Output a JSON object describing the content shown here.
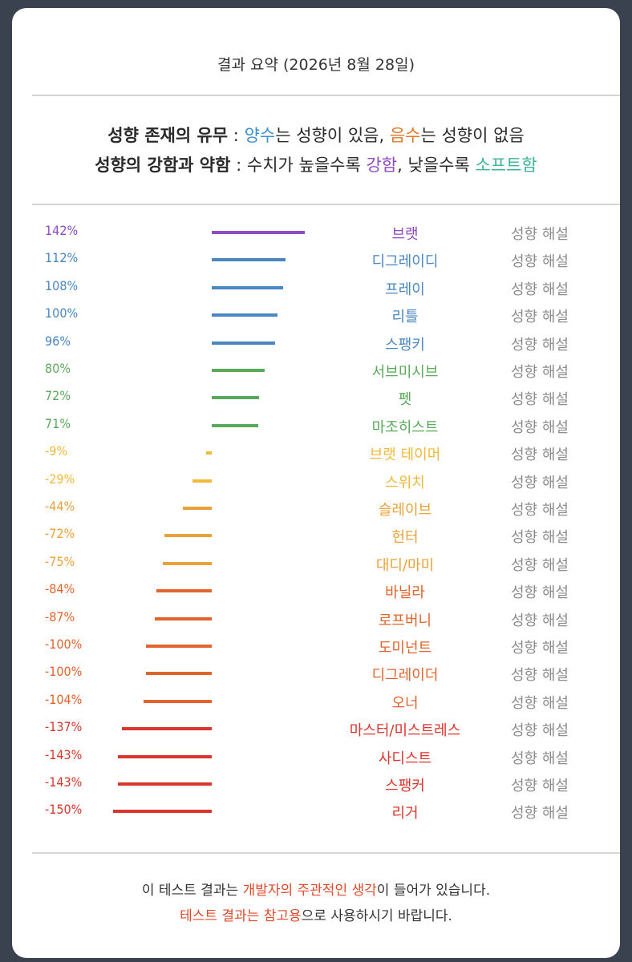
{
  "title": "결과 요약 (2026년 8월 28일)",
  "legend": {
    "line1": {
      "label": "성향 존재의 유무",
      "sep": " : ",
      "positive": "양수",
      "positive_text": "는 성향이 있음, ",
      "negative": "음수",
      "negative_text": "는 성향이 없음"
    },
    "line2": {
      "label": "성향의 강함과 약함",
      "sep": " : 수치가 높을수록 ",
      "strong": "강함",
      "mid": ", 낮을수록 ",
      "soft": "소프트함"
    }
  },
  "help_label": "성향 해설",
  "colors": {
    "purple": "#8e4bc4",
    "blue": "#4a86c0",
    "green": "#5aa85a",
    "yellow": "#f0b93a",
    "amber": "#e8a23a",
    "orange": "#e0642c",
    "red": "#d9362e"
  },
  "chart_data": {
    "type": "bar",
    "orientation": "horizontal-diverging",
    "unit": "%",
    "rows": [
      {
        "label": "브랫",
        "value": 142,
        "display": "142%",
        "color": "purple"
      },
      {
        "label": "디그레이디",
        "value": 112,
        "display": "112%",
        "color": "blue"
      },
      {
        "label": "프레이",
        "value": 108,
        "display": "108%",
        "color": "blue"
      },
      {
        "label": "리틀",
        "value": 100,
        "display": "100%",
        "color": "blue"
      },
      {
        "label": "스팽키",
        "value": 96,
        "display": "96%",
        "color": "blue"
      },
      {
        "label": "서브미시브",
        "value": 80,
        "display": "80%",
        "color": "green"
      },
      {
        "label": "펫",
        "value": 72,
        "display": "72%",
        "color": "green"
      },
      {
        "label": "마조히스트",
        "value": 71,
        "display": "71%",
        "color": "green"
      },
      {
        "label": "브랫 테이머",
        "value": -9,
        "display": "-9%",
        "color": "yellow"
      },
      {
        "label": "스위치",
        "value": -29,
        "display": "-29%",
        "color": "yellow"
      },
      {
        "label": "슬레이브",
        "value": -44,
        "display": "-44%",
        "color": "amber"
      },
      {
        "label": "헌터",
        "value": -72,
        "display": "-72%",
        "color": "amber"
      },
      {
        "label": "대디/마미",
        "value": -75,
        "display": "-75%",
        "color": "amber"
      },
      {
        "label": "바닐라",
        "value": -84,
        "display": "-84%",
        "color": "orange"
      },
      {
        "label": "로프버니",
        "value": -87,
        "display": "-87%",
        "color": "orange"
      },
      {
        "label": "도미넌트",
        "value": -100,
        "display": "-100%",
        "color": "orange"
      },
      {
        "label": "디그레이더",
        "value": -100,
        "display": "-100%",
        "color": "orange"
      },
      {
        "label": "오너",
        "value": -104,
        "display": "-104%",
        "color": "orange"
      },
      {
        "label": "마스터/미스트레스",
        "value": -137,
        "display": "-137%",
        "color": "red"
      },
      {
        "label": "사디스트",
        "value": -143,
        "display": "-143%",
        "color": "red"
      },
      {
        "label": "스팽커",
        "value": -143,
        "display": "-143%",
        "color": "red"
      },
      {
        "label": "리거",
        "value": -150,
        "display": "-150%",
        "color": "red"
      }
    ]
  },
  "footer": {
    "line1_a": "이 테스트 결과는 ",
    "line1_b": "개발자의 주관적인 생각",
    "line1_c": "이 들어가 있습니다.",
    "line2_a": "테스트 결과는 참고용",
    "line2_b": "으로 사용하시기 바랍니다."
  }
}
